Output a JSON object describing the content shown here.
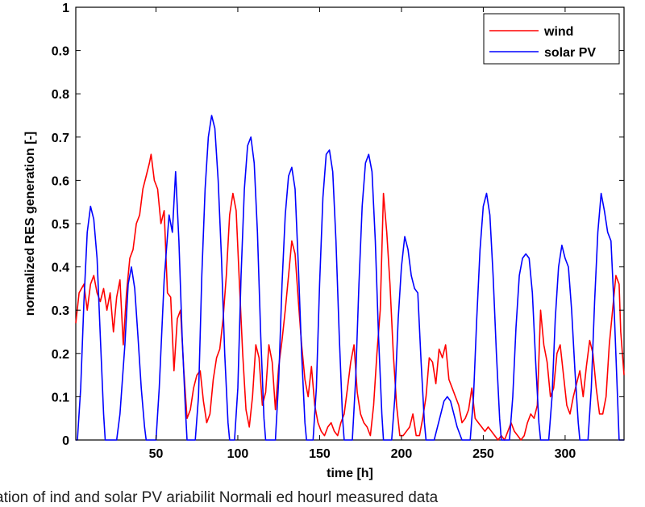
{
  "chart_data": {
    "type": "line",
    "xlabel": "time [h]",
    "ylabel": "normalized RES generation [-]",
    "xlim": [
      1,
      336
    ],
    "ylim": [
      0,
      1
    ],
    "x_ticks": [
      50,
      100,
      150,
      200,
      250,
      300
    ],
    "y_ticks": [
      0,
      0.1,
      0.2,
      0.3,
      0.4,
      0.5,
      0.6,
      0.7,
      0.8,
      0.9,
      1
    ],
    "y_tick_labels": [
      "0",
      "0.1",
      "0.2",
      "0.3",
      "0.4",
      "0.5",
      "0.6",
      "0.7",
      "0.8",
      "0.9",
      "1"
    ],
    "grid": false,
    "legend": "top-right",
    "series": [
      {
        "name": "wind",
        "color": "#ff0000",
        "points": [
          [
            1,
            0.27
          ],
          [
            3,
            0.34
          ],
          [
            6,
            0.36
          ],
          [
            8,
            0.3
          ],
          [
            10,
            0.36
          ],
          [
            12,
            0.38
          ],
          [
            14,
            0.34
          ],
          [
            16,
            0.32
          ],
          [
            18,
            0.35
          ],
          [
            20,
            0.3
          ],
          [
            22,
            0.34
          ],
          [
            24,
            0.25
          ],
          [
            26,
            0.33
          ],
          [
            28,
            0.37
          ],
          [
            30,
            0.22
          ],
          [
            32,
            0.34
          ],
          [
            34,
            0.42
          ],
          [
            36,
            0.44
          ],
          [
            38,
            0.5
          ],
          [
            40,
            0.52
          ],
          [
            42,
            0.58
          ],
          [
            44,
            0.61
          ],
          [
            46,
            0.64
          ],
          [
            47,
            0.66
          ],
          [
            49,
            0.6
          ],
          [
            51,
            0.58
          ],
          [
            53,
            0.5
          ],
          [
            55,
            0.53
          ],
          [
            57,
            0.34
          ],
          [
            59,
            0.33
          ],
          [
            61,
            0.16
          ],
          [
            63,
            0.28
          ],
          [
            65,
            0.3
          ],
          [
            67,
            0.16
          ],
          [
            69,
            0.05
          ],
          [
            71,
            0.07
          ],
          [
            73,
            0.12
          ],
          [
            75,
            0.15
          ],
          [
            77,
            0.16
          ],
          [
            79,
            0.09
          ],
          [
            81,
            0.04
          ],
          [
            83,
            0.06
          ],
          [
            85,
            0.14
          ],
          [
            87,
            0.19
          ],
          [
            89,
            0.21
          ],
          [
            91,
            0.28
          ],
          [
            93,
            0.38
          ],
          [
            95,
            0.52
          ],
          [
            97,
            0.57
          ],
          [
            99,
            0.53
          ],
          [
            101,
            0.36
          ],
          [
            103,
            0.2
          ],
          [
            105,
            0.07
          ],
          [
            107,
            0.03
          ],
          [
            109,
            0.1
          ],
          [
            111,
            0.22
          ],
          [
            113,
            0.19
          ],
          [
            115,
            0.08
          ],
          [
            117,
            0.11
          ],
          [
            119,
            0.22
          ],
          [
            121,
            0.18
          ],
          [
            123,
            0.07
          ],
          [
            125,
            0.17
          ],
          [
            127,
            0.23
          ],
          [
            129,
            0.3
          ],
          [
            131,
            0.38
          ],
          [
            133,
            0.46
          ],
          [
            135,
            0.43
          ],
          [
            137,
            0.32
          ],
          [
            139,
            0.22
          ],
          [
            141,
            0.14
          ],
          [
            143,
            0.1
          ],
          [
            145,
            0.17
          ],
          [
            147,
            0.08
          ],
          [
            149,
            0.04
          ],
          [
            151,
            0.02
          ],
          [
            153,
            0.01
          ],
          [
            155,
            0.03
          ],
          [
            157,
            0.04
          ],
          [
            159,
            0.02
          ],
          [
            161,
            0.01
          ],
          [
            163,
            0.04
          ],
          [
            165,
            0.06
          ],
          [
            167,
            0.12
          ],
          [
            169,
            0.18
          ],
          [
            171,
            0.22
          ],
          [
            173,
            0.11
          ],
          [
            175,
            0.06
          ],
          [
            177,
            0.04
          ],
          [
            179,
            0.03
          ],
          [
            181,
            0.01
          ],
          [
            183,
            0.08
          ],
          [
            185,
            0.2
          ],
          [
            187,
            0.3
          ],
          [
            189,
            0.57
          ],
          [
            191,
            0.48
          ],
          [
            193,
            0.36
          ],
          [
            195,
            0.2
          ],
          [
            197,
            0.08
          ],
          [
            199,
            0.01
          ],
          [
            201,
            0.01
          ],
          [
            203,
            0.02
          ],
          [
            205,
            0.03
          ],
          [
            207,
            0.06
          ],
          [
            209,
            0.01
          ],
          [
            211,
            0.01
          ],
          [
            213,
            0.05
          ],
          [
            215,
            0.1
          ],
          [
            217,
            0.19
          ],
          [
            219,
            0.18
          ],
          [
            221,
            0.13
          ],
          [
            223,
            0.21
          ],
          [
            225,
            0.19
          ],
          [
            227,
            0.22
          ],
          [
            229,
            0.14
          ],
          [
            231,
            0.12
          ],
          [
            233,
            0.1
          ],
          [
            235,
            0.08
          ],
          [
            237,
            0.04
          ],
          [
            239,
            0.05
          ],
          [
            241,
            0.07
          ],
          [
            243,
            0.12
          ],
          [
            245,
            0.05
          ],
          [
            247,
            0.04
          ],
          [
            249,
            0.03
          ],
          [
            251,
            0.02
          ],
          [
            253,
            0.03
          ],
          [
            255,
            0.02
          ],
          [
            257,
            0.01
          ],
          [
            259,
            0.0
          ],
          [
            261,
            0.01
          ],
          [
            263,
            0.0
          ],
          [
            265,
            0.02
          ],
          [
            267,
            0.04
          ],
          [
            269,
            0.02
          ],
          [
            271,
            0.01
          ],
          [
            273,
            0.0
          ],
          [
            275,
            0.01
          ],
          [
            277,
            0.04
          ],
          [
            279,
            0.06
          ],
          [
            281,
            0.05
          ],
          [
            283,
            0.08
          ],
          [
            285,
            0.3
          ],
          [
            287,
            0.22
          ],
          [
            289,
            0.18
          ],
          [
            291,
            0.1
          ],
          [
            293,
            0.12
          ],
          [
            295,
            0.2
          ],
          [
            297,
            0.22
          ],
          [
            299,
            0.15
          ],
          [
            301,
            0.08
          ],
          [
            303,
            0.06
          ],
          [
            305,
            0.1
          ],
          [
            307,
            0.13
          ],
          [
            309,
            0.16
          ],
          [
            311,
            0.1
          ],
          [
            313,
            0.17
          ],
          [
            315,
            0.23
          ],
          [
            317,
            0.2
          ],
          [
            319,
            0.12
          ],
          [
            321,
            0.06
          ],
          [
            323,
            0.06
          ],
          [
            325,
            0.1
          ],
          [
            327,
            0.22
          ],
          [
            329,
            0.3
          ],
          [
            331,
            0.38
          ],
          [
            333,
            0.36
          ],
          [
            334,
            0.25
          ],
          [
            336,
            0.15
          ]
        ]
      },
      {
        "name": "solar PV",
        "color": "#0000ff",
        "points": [
          [
            1,
            0.0
          ],
          [
            2,
            0.0
          ],
          [
            4,
            0.12
          ],
          [
            6,
            0.32
          ],
          [
            8,
            0.48
          ],
          [
            10,
            0.54
          ],
          [
            12,
            0.51
          ],
          [
            14,
            0.42
          ],
          [
            16,
            0.24
          ],
          [
            18,
            0.06
          ],
          [
            19,
            0.0
          ],
          [
            26,
            0.0
          ],
          [
            28,
            0.06
          ],
          [
            31,
            0.22
          ],
          [
            33,
            0.36
          ],
          [
            35,
            0.4
          ],
          [
            37,
            0.35
          ],
          [
            39,
            0.24
          ],
          [
            41,
            0.12
          ],
          [
            43,
            0.03
          ],
          [
            44,
            0.0
          ],
          [
            50,
            0.0
          ],
          [
            52,
            0.12
          ],
          [
            55,
            0.37
          ],
          [
            58,
            0.52
          ],
          [
            60,
            0.48
          ],
          [
            62,
            0.62
          ],
          [
            64,
            0.46
          ],
          [
            66,
            0.24
          ],
          [
            68,
            0.07
          ],
          [
            69,
            0.0
          ],
          [
            74,
            0.0
          ],
          [
            76,
            0.1
          ],
          [
            78,
            0.38
          ],
          [
            80,
            0.58
          ],
          [
            82,
            0.7
          ],
          [
            84,
            0.75
          ],
          [
            86,
            0.72
          ],
          [
            88,
            0.6
          ],
          [
            90,
            0.42
          ],
          [
            92,
            0.2
          ],
          [
            94,
            0.04
          ],
          [
            95,
            0.0
          ],
          [
            98,
            0.0
          ],
          [
            100,
            0.12
          ],
          [
            102,
            0.38
          ],
          [
            104,
            0.58
          ],
          [
            106,
            0.68
          ],
          [
            108,
            0.7
          ],
          [
            110,
            0.64
          ],
          [
            112,
            0.48
          ],
          [
            114,
            0.24
          ],
          [
            116,
            0.05
          ],
          [
            117,
            0.0
          ],
          [
            123,
            0.0
          ],
          [
            125,
            0.14
          ],
          [
            127,
            0.36
          ],
          [
            129,
            0.52
          ],
          [
            131,
            0.61
          ],
          [
            133,
            0.63
          ],
          [
            135,
            0.58
          ],
          [
            137,
            0.4
          ],
          [
            139,
            0.2
          ],
          [
            141,
            0.04
          ],
          [
            142,
            0.0
          ],
          [
            146,
            0.0
          ],
          [
            148,
            0.12
          ],
          [
            150,
            0.36
          ],
          [
            152,
            0.56
          ],
          [
            154,
            0.66
          ],
          [
            156,
            0.67
          ],
          [
            158,
            0.62
          ],
          [
            160,
            0.46
          ],
          [
            162,
            0.24
          ],
          [
            164,
            0.05
          ],
          [
            165,
            0.0
          ],
          [
            170,
            0.0
          ],
          [
            172,
            0.14
          ],
          [
            174,
            0.36
          ],
          [
            176,
            0.54
          ],
          [
            178,
            0.64
          ],
          [
            180,
            0.66
          ],
          [
            182,
            0.62
          ],
          [
            184,
            0.46
          ],
          [
            186,
            0.24
          ],
          [
            188,
            0.06
          ],
          [
            189,
            0.0
          ],
          [
            194,
            0.0
          ],
          [
            196,
            0.1
          ],
          [
            198,
            0.28
          ],
          [
            200,
            0.4
          ],
          [
            202,
            0.47
          ],
          [
            204,
            0.44
          ],
          [
            206,
            0.38
          ],
          [
            208,
            0.35
          ],
          [
            210,
            0.34
          ],
          [
            212,
            0.18
          ],
          [
            214,
            0.04
          ],
          [
            215,
            0.0
          ],
          [
            220,
            0.0
          ],
          [
            222,
            0.03
          ],
          [
            224,
            0.06
          ],
          [
            226,
            0.09
          ],
          [
            228,
            0.1
          ],
          [
            230,
            0.09
          ],
          [
            232,
            0.06
          ],
          [
            234,
            0.03
          ],
          [
            236,
            0.01
          ],
          [
            237,
            0.0
          ],
          [
            242,
            0.0
          ],
          [
            244,
            0.1
          ],
          [
            246,
            0.28
          ],
          [
            248,
            0.44
          ],
          [
            250,
            0.54
          ],
          [
            252,
            0.57
          ],
          [
            254,
            0.52
          ],
          [
            256,
            0.38
          ],
          [
            258,
            0.2
          ],
          [
            260,
            0.05
          ],
          [
            261,
            0.0
          ],
          [
            266,
            0.0
          ],
          [
            268,
            0.1
          ],
          [
            270,
            0.26
          ],
          [
            272,
            0.38
          ],
          [
            274,
            0.42
          ],
          [
            276,
            0.43
          ],
          [
            278,
            0.42
          ],
          [
            280,
            0.34
          ],
          [
            282,
            0.18
          ],
          [
            284,
            0.04
          ],
          [
            285,
            0.0
          ],
          [
            290,
            0.0
          ],
          [
            292,
            0.1
          ],
          [
            294,
            0.28
          ],
          [
            296,
            0.4
          ],
          [
            298,
            0.45
          ],
          [
            300,
            0.42
          ],
          [
            302,
            0.4
          ],
          [
            304,
            0.3
          ],
          [
            306,
            0.16
          ],
          [
            308,
            0.04
          ],
          [
            309,
            0.0
          ],
          [
            314,
            0.0
          ],
          [
            316,
            0.12
          ],
          [
            318,
            0.32
          ],
          [
            320,
            0.48
          ],
          [
            322,
            0.57
          ],
          [
            324,
            0.53
          ],
          [
            326,
            0.48
          ],
          [
            328,
            0.46
          ],
          [
            330,
            0.3
          ],
          [
            332,
            0.1
          ],
          [
            333,
            0.0
          ],
          [
            336,
            0.0
          ]
        ]
      }
    ]
  },
  "caption_text": "ation of  ind and solar PV  ariabilit   Normali ed hourl  measured data"
}
